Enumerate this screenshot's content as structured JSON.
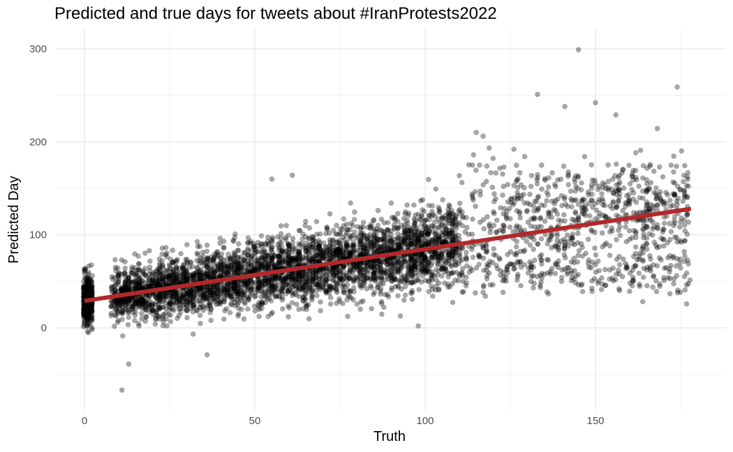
{
  "chart_data": {
    "type": "scatter",
    "title": "Predicted and true days for tweets about #IranProtests2022",
    "xlabel": "Truth",
    "ylabel": "Predicted Day",
    "xlim": [
      -8,
      185
    ],
    "ylim": [
      -88,
      312
    ],
    "x_ticks": [
      0,
      50,
      100,
      150
    ],
    "x_tick_labels": [
      "0",
      "50",
      "100",
      "150"
    ],
    "y_ticks": [
      0,
      100,
      200,
      300
    ],
    "y_tick_labels": [
      "0",
      "100",
      "200",
      "300"
    ],
    "grid": true,
    "point_color": "#000000",
    "point_opacity": 0.35,
    "fit_line_color": "#b2282b",
    "fit_line": {
      "x": [
        0,
        178
      ],
      "y": [
        29,
        128
      ]
    },
    "highlighted_points": [
      {
        "x": 11,
        "y": -67
      },
      {
        "x": 145,
        "y": 299
      },
      {
        "x": 133,
        "y": 251
      },
      {
        "x": 150,
        "y": 242
      },
      {
        "x": 174,
        "y": 259
      },
      {
        "x": 141,
        "y": 238
      },
      {
        "x": 156,
        "y": 229
      },
      {
        "x": 13,
        "y": -39
      },
      {
        "x": 36,
        "y": -29
      },
      {
        "x": 55,
        "y": 160
      },
      {
        "x": 61,
        "y": 164
      },
      {
        "x": 98,
        "y": 2
      },
      {
        "x": 115,
        "y": 210
      },
      {
        "x": 117,
        "y": 206
      }
    ],
    "point_cloud": {
      "n_points": 5200,
      "x_range": [
        0,
        178
      ],
      "note": ""
    }
  }
}
